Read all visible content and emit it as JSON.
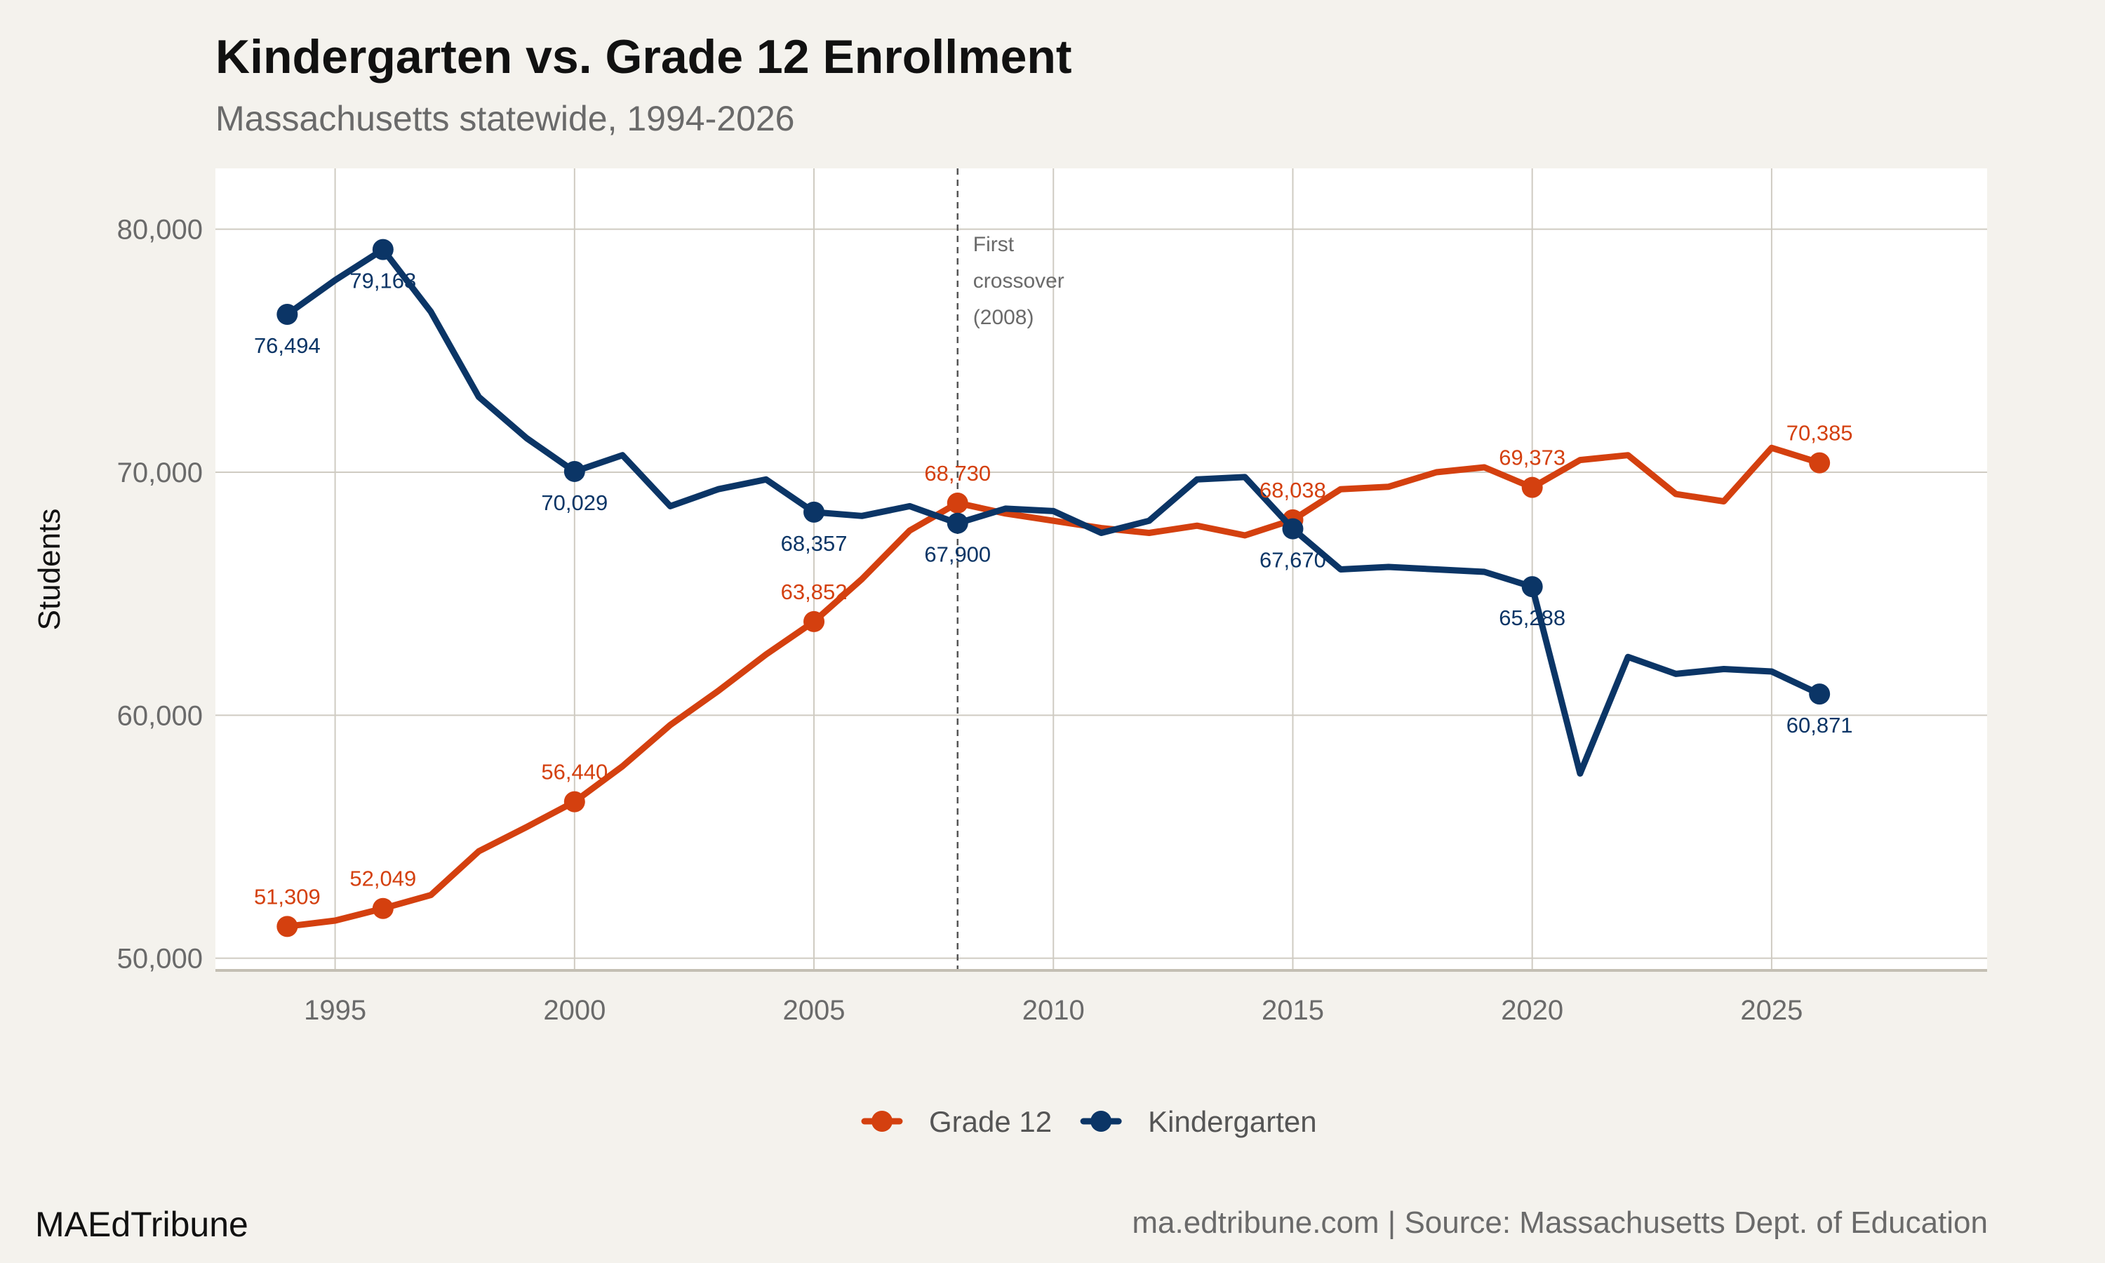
{
  "brand": "MAEdTribune",
  "source": "ma.edtribune.com | Source: Massachusetts Dept. of Education",
  "chart_data": {
    "type": "line",
    "title": "Kindergarten vs. Grade 12 Enrollment",
    "subtitle": "Massachusetts statewide, 1994-2026",
    "xlabel": "",
    "ylabel": "Students",
    "xlim": [
      1992.5,
      2029.5
    ],
    "ylim": [
      49500,
      82500
    ],
    "x_ticks": [
      1995,
      2000,
      2005,
      2010,
      2015,
      2020,
      2025
    ],
    "x_tick_labels": [
      "1995",
      "2000",
      "2005",
      "2010",
      "2015",
      "2020",
      "2025"
    ],
    "y_ticks": [
      50000,
      60000,
      70000,
      80000
    ],
    "y_tick_labels": [
      "50,000",
      "60,000",
      "70,000",
      "80,000"
    ],
    "grid": true,
    "legend_position": "bottom",
    "x": [
      1994,
      1995,
      1996,
      1997,
      1998,
      1999,
      2000,
      2001,
      2002,
      2003,
      2004,
      2005,
      2006,
      2007,
      2008,
      2009,
      2010,
      2011,
      2012,
      2013,
      2014,
      2015,
      2016,
      2017,
      2018,
      2019,
      2020,
      2021,
      2022,
      2023,
      2024,
      2025,
      2026
    ],
    "series": [
      {
        "name": "Grade 12",
        "color": "#d4400f",
        "values": [
          51309,
          51550,
          52049,
          52600,
          54400,
          55400,
          56440,
          57900,
          59600,
          61000,
          62500,
          63852,
          65600,
          67600,
          68730,
          68300,
          68000,
          67700,
          67500,
          67800,
          67400,
          68038,
          69300,
          69400,
          70000,
          70200,
          69373,
          70500,
          70700,
          69100,
          68800,
          71000,
          70385
        ],
        "labels": [
          {
            "x": 1994,
            "y": 51309,
            "text": "51,309",
            "pos": "above"
          },
          {
            "x": 1996,
            "y": 52049,
            "text": "52,049",
            "pos": "above"
          },
          {
            "x": 2000,
            "y": 56440,
            "text": "56,440",
            "pos": "above"
          },
          {
            "x": 2005,
            "y": 63852,
            "text": "63,852",
            "pos": "above"
          },
          {
            "x": 2008,
            "y": 68730,
            "text": "68,730",
            "pos": "above"
          },
          {
            "x": 2015,
            "y": 68038,
            "text": "68,038",
            "pos": "above"
          },
          {
            "x": 2020,
            "y": 69373,
            "text": "69,373",
            "pos": "above"
          },
          {
            "x": 2026,
            "y": 70385,
            "text": "70,385",
            "pos": "above"
          }
        ]
      },
      {
        "name": "Kindergarten",
        "color": "#0b3566",
        "values": [
          76494,
          77900,
          79163,
          76600,
          73100,
          71400,
          70029,
          70700,
          68600,
          69300,
          69700,
          68357,
          68200,
          68600,
          67900,
          68500,
          68400,
          67500,
          68000,
          69700,
          69800,
          67670,
          66000,
          66100,
          66000,
          65900,
          65288,
          57600,
          62400,
          61700,
          61900,
          61800,
          60871
        ],
        "labels": [
          {
            "x": 1994,
            "y": 76494,
            "text": "76,494",
            "pos": "below"
          },
          {
            "x": 1996,
            "y": 79163,
            "text": "79,163",
            "pos": "below"
          },
          {
            "x": 2000,
            "y": 70029,
            "text": "70,029",
            "pos": "below"
          },
          {
            "x": 2005,
            "y": 68357,
            "text": "68,357",
            "pos": "below"
          },
          {
            "x": 2008,
            "y": 67900,
            "text": "67,900",
            "pos": "below"
          },
          {
            "x": 2015,
            "y": 67670,
            "text": "67,670",
            "pos": "below"
          },
          {
            "x": 2020,
            "y": 65288,
            "text": "65,288",
            "pos": "below"
          },
          {
            "x": 2026,
            "y": 60871,
            "text": "60,871",
            "pos": "below"
          }
        ]
      }
    ],
    "annotation": {
      "x": 2008,
      "lines": [
        "First",
        "crossover",
        "(2008)"
      ]
    }
  }
}
